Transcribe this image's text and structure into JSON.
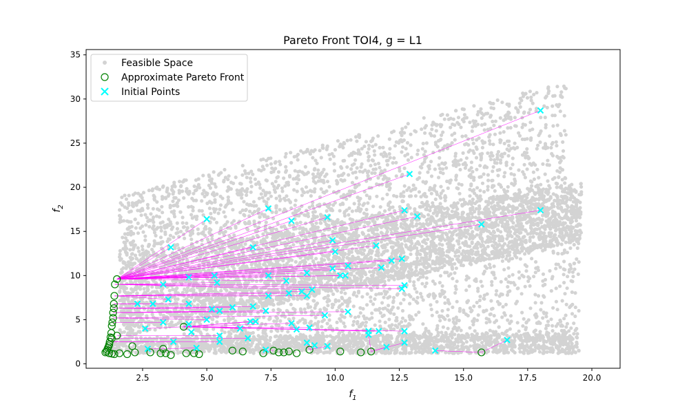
{
  "chart_data": {
    "type": "scatter",
    "title": "Pareto Front TOI4, g = L1",
    "xlabel": "f",
    "xlabel_sub": "1",
    "ylabel": "f",
    "ylabel_sub": "2",
    "xlim": [
      0.3,
      21.1
    ],
    "ylim": [
      -0.5,
      35.6
    ],
    "xticks": [
      "2.5",
      "5.0",
      "7.5",
      "10.0",
      "12.5",
      "15.0",
      "17.5",
      "20.0"
    ],
    "xtick_values": [
      2.5,
      5.0,
      7.5,
      10.0,
      12.5,
      15.0,
      17.5,
      20.0
    ],
    "yticks": [
      "0",
      "5",
      "10",
      "15",
      "20",
      "25",
      "30",
      "35"
    ],
    "ytick_values": [
      0,
      5,
      10,
      15,
      20,
      25,
      30,
      35
    ],
    "grid": false,
    "legend_position": "top-left",
    "colors": {
      "feasible": "#d3d3d3",
      "pareto": "#008000",
      "initial": "#00ffff",
      "connector": "#ff00ff"
    },
    "series": [
      {
        "name": "Feasible Space",
        "marker": "dot",
        "description_points": "dense cloud sampled from feasible region",
        "bands": [
          {
            "x": [
              1.2,
              19.5
            ],
            "ylow": [
              1.2,
              1.2
            ],
            "yhigh": [
              3.0,
              3.5
            ]
          },
          {
            "x": [
              1.6,
              19.6
            ],
            "ylow": [
              3.0,
              14.0
            ],
            "yhigh": [
              12.0,
              20.5
            ]
          },
          {
            "x": [
              1.6,
              19.0
            ],
            "ylow": [
              12.0,
              20.0
            ],
            "yhigh": [
              19.0,
              32.0
            ]
          },
          {
            "x": [
              4.0,
              19.5
            ],
            "ylow": [
              1.5,
              2.5
            ],
            "yhigh": [
              6.0,
              14.0
            ]
          }
        ]
      },
      {
        "name": "Approximate Pareto Front",
        "marker": "circle",
        "points": [
          [
            1.05,
            1.3
          ],
          [
            1.1,
            1.4
          ],
          [
            1.12,
            1.6
          ],
          [
            1.15,
            1.8
          ],
          [
            1.18,
            2.0
          ],
          [
            1.2,
            2.2
          ],
          [
            1.22,
            2.5
          ],
          [
            1.25,
            3.0
          ],
          [
            1.28,
            3.5
          ],
          [
            1.3,
            4.3
          ],
          [
            1.32,
            4.7
          ],
          [
            1.35,
            5.2
          ],
          [
            1.35,
            5.8
          ],
          [
            1.38,
            6.3
          ],
          [
            1.38,
            6.8
          ],
          [
            1.4,
            7.7
          ],
          [
            1.42,
            9.0
          ],
          [
            1.5,
            9.6
          ],
          [
            1.5,
            3.2
          ],
          [
            1.3,
            2.9
          ],
          [
            1.2,
            1.2
          ],
          [
            1.3,
            1.15
          ],
          [
            1.4,
            1.1
          ],
          [
            1.6,
            1.2
          ],
          [
            1.9,
            1.1
          ],
          [
            2.1,
            2.0
          ],
          [
            2.2,
            1.3
          ],
          [
            2.8,
            1.3
          ],
          [
            3.2,
            1.2
          ],
          [
            3.3,
            1.7
          ],
          [
            3.4,
            1.2
          ],
          [
            3.6,
            1.0
          ],
          [
            4.1,
            4.2
          ],
          [
            4.2,
            1.2
          ],
          [
            4.5,
            1.2
          ],
          [
            4.7,
            1.1
          ],
          [
            6.0,
            1.5
          ],
          [
            6.4,
            1.4
          ],
          [
            7.2,
            1.2
          ],
          [
            7.6,
            1.5
          ],
          [
            7.8,
            1.3
          ],
          [
            8.0,
            1.3
          ],
          [
            8.2,
            1.4
          ],
          [
            8.5,
            1.2
          ],
          [
            9.0,
            1.6
          ],
          [
            10.2,
            1.4
          ],
          [
            11.0,
            1.3
          ],
          [
            11.4,
            1.4
          ],
          [
            15.7,
            1.3
          ]
        ]
      },
      {
        "name": "Initial Points",
        "marker": "x",
        "points": [
          [
            18.0,
            28.7
          ],
          [
            12.9,
            21.5
          ],
          [
            18.0,
            17.4
          ],
          [
            7.4,
            17.6
          ],
          [
            12.7,
            17.4
          ],
          [
            13.2,
            16.7
          ],
          [
            5.0,
            16.4
          ],
          [
            8.3,
            16.2
          ],
          [
            9.7,
            16.6
          ],
          [
            15.7,
            15.8
          ],
          [
            9.9,
            14.0
          ],
          [
            11.6,
            13.4
          ],
          [
            3.6,
            13.2
          ],
          [
            6.8,
            13.2
          ],
          [
            10.0,
            12.7
          ],
          [
            12.2,
            11.7
          ],
          [
            12.6,
            11.9
          ],
          [
            10.5,
            11.1
          ],
          [
            9.9,
            10.8
          ],
          [
            11.8,
            10.9
          ],
          [
            8.9,
            10.3
          ],
          [
            10.2,
            10.0
          ],
          [
            10.4,
            10.0
          ],
          [
            7.4,
            10.0
          ],
          [
            5.3,
            10.0
          ],
          [
            4.3,
            9.8
          ],
          [
            8.1,
            9.4
          ],
          [
            3.3,
            9.0
          ],
          [
            5.4,
            9.2
          ],
          [
            12.7,
            8.9
          ],
          [
            12.6,
            8.5
          ],
          [
            9.1,
            8.4
          ],
          [
            8.7,
            8.2
          ],
          [
            8.2,
            8.0
          ],
          [
            8.9,
            7.7
          ],
          [
            7.4,
            7.7
          ],
          [
            3.5,
            7.3
          ],
          [
            2.3,
            6.8
          ],
          [
            2.9,
            6.8
          ],
          [
            4.3,
            6.8
          ],
          [
            6.8,
            6.5
          ],
          [
            6.0,
            6.4
          ],
          [
            5.2,
            6.2
          ],
          [
            5.5,
            6.0
          ],
          [
            7.3,
            6.0
          ],
          [
            10.5,
            5.9
          ],
          [
            9.6,
            5.5
          ],
          [
            5.0,
            5.0
          ],
          [
            6.7,
            4.8
          ],
          [
            6.9,
            4.8
          ],
          [
            3.3,
            4.7
          ],
          [
            8.3,
            4.6
          ],
          [
            4.3,
            4.5
          ],
          [
            9.0,
            4.1
          ],
          [
            2.6,
            4.0
          ],
          [
            6.3,
            4.0
          ],
          [
            8.5,
            3.9
          ],
          [
            4.4,
            3.6
          ],
          [
            11.3,
            3.7
          ],
          [
            11.7,
            3.7
          ],
          [
            12.7,
            3.7
          ],
          [
            5.5,
            3.2
          ],
          [
            6.6,
            2.9
          ],
          [
            11.3,
            3.3
          ],
          [
            3.7,
            2.5
          ],
          [
            5.5,
            2.5
          ],
          [
            8.9,
            2.4
          ],
          [
            12.7,
            2.4
          ],
          [
            16.7,
            2.7
          ],
          [
            9.7,
            2.0
          ],
          [
            9.2,
            2.1
          ],
          [
            12.0,
            1.9
          ],
          [
            7.3,
            1.6
          ],
          [
            13.9,
            1.5
          ],
          [
            2.7,
            1.7
          ],
          [
            4.6,
            1.8
          ]
        ]
      }
    ],
    "legend": [
      "Feasible Space",
      "Approximate Pareto Front",
      "Initial Points"
    ]
  }
}
